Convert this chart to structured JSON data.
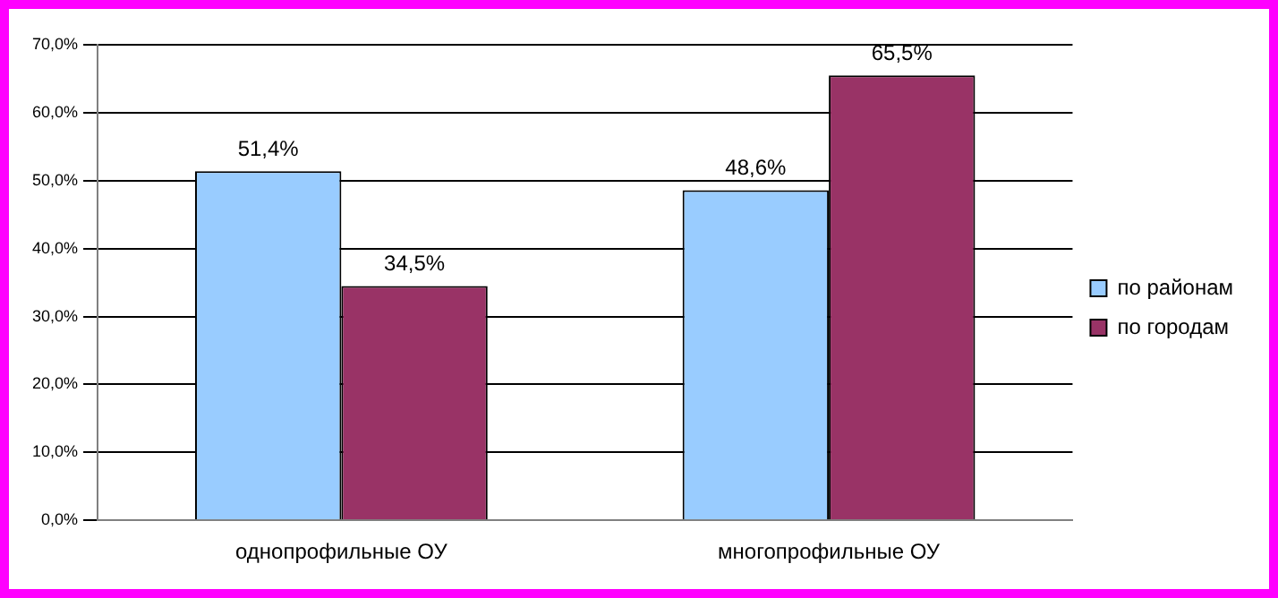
{
  "chart_data": {
    "type": "bar",
    "categories": [
      "однопрофильные ОУ",
      "многопрофильные ОУ"
    ],
    "series": [
      {
        "name": "по районам",
        "color": "#99ccff",
        "values": [
          51.4,
          48.6
        ],
        "value_labels": [
          "51,4%",
          "48,6%"
        ]
      },
      {
        "name": "по городам",
        "color": "#993366",
        "values": [
          34.5,
          65.5
        ],
        "value_labels": [
          "34,5%",
          "65,5%"
        ]
      }
    ],
    "ylim": [
      0,
      70
    ],
    "yticks": [
      {
        "value": 0,
        "label": "0,0%"
      },
      {
        "value": 10,
        "label": "10,0%"
      },
      {
        "value": 20,
        "label": "20,0%"
      },
      {
        "value": 30,
        "label": "30,0%"
      },
      {
        "value": 40,
        "label": "40,0%"
      },
      {
        "value": 50,
        "label": "50,0%"
      },
      {
        "value": 60,
        "label": "60,0%"
      },
      {
        "value": 70,
        "label": "70,0%"
      }
    ],
    "grid": "y",
    "legend": "right"
  }
}
